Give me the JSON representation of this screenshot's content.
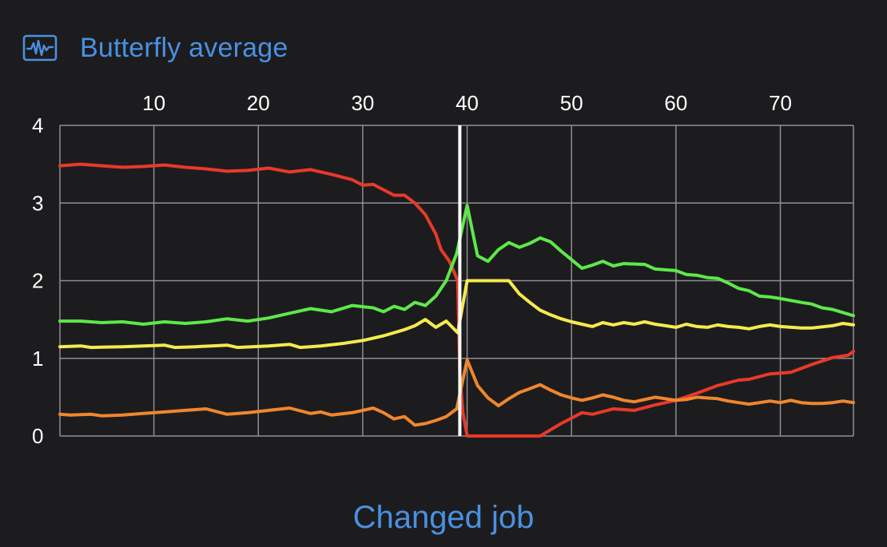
{
  "header": {
    "title": "Butterfly average",
    "icon": "waveform-chart-icon"
  },
  "footer": {
    "action_label": "Changed job"
  },
  "colors": {
    "background": "#1c1c1e",
    "accent": "#4a90e2",
    "grid": "#8e8e93",
    "marker": "#ffffff"
  },
  "chart_data": {
    "type": "line",
    "xlim": [
      1,
      77
    ],
    "ylim": [
      0,
      4
    ],
    "x_ticks": [
      10,
      20,
      30,
      40,
      50,
      60,
      70
    ],
    "y_ticks": [
      0,
      1,
      2,
      3,
      4
    ],
    "x_axis_position": "top",
    "grid": true,
    "marker_x": 39.3,
    "series": [
      {
        "color": "#e8392a",
        "points": [
          [
            1,
            3.48
          ],
          [
            3,
            3.5
          ],
          [
            5,
            3.48
          ],
          [
            7,
            3.46
          ],
          [
            9,
            3.47
          ],
          [
            11,
            3.49
          ],
          [
            13,
            3.46
          ],
          [
            15,
            3.44
          ],
          [
            17,
            3.41
          ],
          [
            19,
            3.42
          ],
          [
            21,
            3.45
          ],
          [
            23,
            3.4
          ],
          [
            25,
            3.43
          ],
          [
            27,
            3.37
          ],
          [
            29,
            3.3
          ],
          [
            30,
            3.23
          ],
          [
            31,
            3.24
          ],
          [
            33,
            3.1
          ],
          [
            34,
            3.1
          ],
          [
            35,
            3.0
          ],
          [
            36,
            2.85
          ],
          [
            37,
            2.6
          ],
          [
            37.5,
            2.4
          ],
          [
            38.3,
            2.25
          ],
          [
            39.1,
            2.0
          ],
          [
            39.3,
            0.8
          ],
          [
            39.6,
            0.3
          ],
          [
            40,
            0.0
          ],
          [
            41,
            0
          ],
          [
            43,
            0
          ],
          [
            45,
            0
          ],
          [
            46,
            0
          ],
          [
            47,
            0
          ],
          [
            48,
            0.08
          ],
          [
            49,
            0.16
          ],
          [
            50,
            0.23
          ],
          [
            51,
            0.3
          ],
          [
            52,
            0.28
          ],
          [
            54,
            0.35
          ],
          [
            56,
            0.33
          ],
          [
            58,
            0.4
          ],
          [
            60,
            0.46
          ],
          [
            62,
            0.55
          ],
          [
            64,
            0.65
          ],
          [
            66,
            0.72
          ],
          [
            67,
            0.73
          ],
          [
            69,
            0.8
          ],
          [
            71,
            0.82
          ],
          [
            73,
            0.92
          ],
          [
            75,
            1.01
          ],
          [
            76.5,
            1.04
          ],
          [
            77,
            1.09
          ]
        ]
      },
      {
        "color": "#5ee84a",
        "points": [
          [
            1,
            1.48
          ],
          [
            3,
            1.48
          ],
          [
            5,
            1.46
          ],
          [
            7,
            1.47
          ],
          [
            9,
            1.44
          ],
          [
            11,
            1.47
          ],
          [
            13,
            1.45
          ],
          [
            15,
            1.47
          ],
          [
            17,
            1.51
          ],
          [
            19,
            1.48
          ],
          [
            21,
            1.52
          ],
          [
            23,
            1.58
          ],
          [
            25,
            1.64
          ],
          [
            27,
            1.6
          ],
          [
            29,
            1.68
          ],
          [
            31,
            1.65
          ],
          [
            32,
            1.6
          ],
          [
            33,
            1.67
          ],
          [
            34,
            1.63
          ],
          [
            35,
            1.72
          ],
          [
            36,
            1.68
          ],
          [
            37,
            1.8
          ],
          [
            38,
            2.0
          ],
          [
            39,
            2.35
          ],
          [
            40,
            2.97
          ],
          [
            41,
            2.32
          ],
          [
            42,
            2.25
          ],
          [
            43,
            2.4
          ],
          [
            44,
            2.49
          ],
          [
            45,
            2.43
          ],
          [
            46,
            2.48
          ],
          [
            47,
            2.55
          ],
          [
            48,
            2.5
          ],
          [
            49,
            2.38
          ],
          [
            50,
            2.27
          ],
          [
            51,
            2.16
          ],
          [
            52,
            2.2
          ],
          [
            53,
            2.25
          ],
          [
            54,
            2.19
          ],
          [
            55,
            2.22
          ],
          [
            57,
            2.21
          ],
          [
            58,
            2.15
          ],
          [
            60,
            2.13
          ],
          [
            61,
            2.08
          ],
          [
            62,
            2.07
          ],
          [
            63,
            2.04
          ],
          [
            64,
            2.03
          ],
          [
            65,
            1.97
          ],
          [
            66,
            1.9
          ],
          [
            67,
            1.87
          ],
          [
            68,
            1.8
          ],
          [
            69,
            1.79
          ],
          [
            70,
            1.77
          ],
          [
            72,
            1.72
          ],
          [
            73,
            1.7
          ],
          [
            74,
            1.65
          ],
          [
            75,
            1.63
          ],
          [
            76,
            1.59
          ],
          [
            77,
            1.55
          ]
        ]
      },
      {
        "color": "#f5ea4e",
        "points": [
          [
            1,
            1.15
          ],
          [
            3,
            1.16
          ],
          [
            4,
            1.14
          ],
          [
            7,
            1.15
          ],
          [
            9,
            1.16
          ],
          [
            11,
            1.17
          ],
          [
            12,
            1.14
          ],
          [
            14,
            1.15
          ],
          [
            17,
            1.17
          ],
          [
            18,
            1.14
          ],
          [
            21,
            1.16
          ],
          [
            23,
            1.18
          ],
          [
            24,
            1.14
          ],
          [
            26,
            1.16
          ],
          [
            28,
            1.19
          ],
          [
            30,
            1.23
          ],
          [
            32,
            1.29
          ],
          [
            34,
            1.37
          ],
          [
            35,
            1.42
          ],
          [
            36,
            1.5
          ],
          [
            37,
            1.4
          ],
          [
            38,
            1.48
          ],
          [
            39.1,
            1.33
          ],
          [
            40,
            2.0
          ],
          [
            41,
            2.0
          ],
          [
            42,
            2.0
          ],
          [
            43,
            2.0
          ],
          [
            44,
            2.0
          ],
          [
            45,
            1.83
          ],
          [
            46,
            1.72
          ],
          [
            47,
            1.62
          ],
          [
            48,
            1.56
          ],
          [
            49,
            1.51
          ],
          [
            50,
            1.47
          ],
          [
            51,
            1.44
          ],
          [
            52,
            1.41
          ],
          [
            53,
            1.46
          ],
          [
            54,
            1.43
          ],
          [
            55,
            1.46
          ],
          [
            56,
            1.44
          ],
          [
            57,
            1.47
          ],
          [
            58,
            1.44
          ],
          [
            59,
            1.42
          ],
          [
            60,
            1.4
          ],
          [
            61,
            1.44
          ],
          [
            62,
            1.41
          ],
          [
            63,
            1.4
          ],
          [
            64,
            1.43
          ],
          [
            65,
            1.41
          ],
          [
            66,
            1.4
          ],
          [
            67,
            1.38
          ],
          [
            68,
            1.41
          ],
          [
            69,
            1.43
          ],
          [
            70,
            1.41
          ],
          [
            72,
            1.39
          ],
          [
            73,
            1.39
          ],
          [
            75,
            1.42
          ],
          [
            76,
            1.45
          ],
          [
            77,
            1.43
          ]
        ]
      },
      {
        "color": "#f0862e",
        "points": [
          [
            1,
            0.28
          ],
          [
            2,
            0.27
          ],
          [
            4,
            0.28
          ],
          [
            5,
            0.26
          ],
          [
            7,
            0.27
          ],
          [
            9,
            0.29
          ],
          [
            11,
            0.31
          ],
          [
            13,
            0.33
          ],
          [
            15,
            0.35
          ],
          [
            17,
            0.28
          ],
          [
            19,
            0.3
          ],
          [
            21,
            0.33
          ],
          [
            23,
            0.36
          ],
          [
            25,
            0.29
          ],
          [
            26,
            0.31
          ],
          [
            27,
            0.27
          ],
          [
            29,
            0.3
          ],
          [
            31,
            0.36
          ],
          [
            32,
            0.3
          ],
          [
            33,
            0.22
          ],
          [
            34,
            0.25
          ],
          [
            35,
            0.14
          ],
          [
            36,
            0.16
          ],
          [
            37,
            0.2
          ],
          [
            38,
            0.25
          ],
          [
            39,
            0.35
          ],
          [
            40,
            0.98
          ],
          [
            41,
            0.65
          ],
          [
            42,
            0.49
          ],
          [
            43,
            0.39
          ],
          [
            44,
            0.48
          ],
          [
            45,
            0.56
          ],
          [
            46,
            0.61
          ],
          [
            47,
            0.66
          ],
          [
            48,
            0.59
          ],
          [
            49,
            0.53
          ],
          [
            50,
            0.49
          ],
          [
            51,
            0.46
          ],
          [
            52,
            0.49
          ],
          [
            53,
            0.53
          ],
          [
            54,
            0.5
          ],
          [
            55,
            0.46
          ],
          [
            56,
            0.44
          ],
          [
            57,
            0.47
          ],
          [
            58,
            0.5
          ],
          [
            59,
            0.48
          ],
          [
            60,
            0.46
          ],
          [
            61,
            0.47
          ],
          [
            62,
            0.5
          ],
          [
            64,
            0.48
          ],
          [
            65,
            0.45
          ],
          [
            66,
            0.43
          ],
          [
            67,
            0.41
          ],
          [
            68,
            0.43
          ],
          [
            69,
            0.45
          ],
          [
            70,
            0.43
          ],
          [
            71,
            0.46
          ],
          [
            72,
            0.43
          ],
          [
            73,
            0.42
          ],
          [
            74,
            0.42
          ],
          [
            75,
            0.43
          ],
          [
            76,
            0.45
          ],
          [
            77,
            0.43
          ]
        ]
      }
    ]
  }
}
